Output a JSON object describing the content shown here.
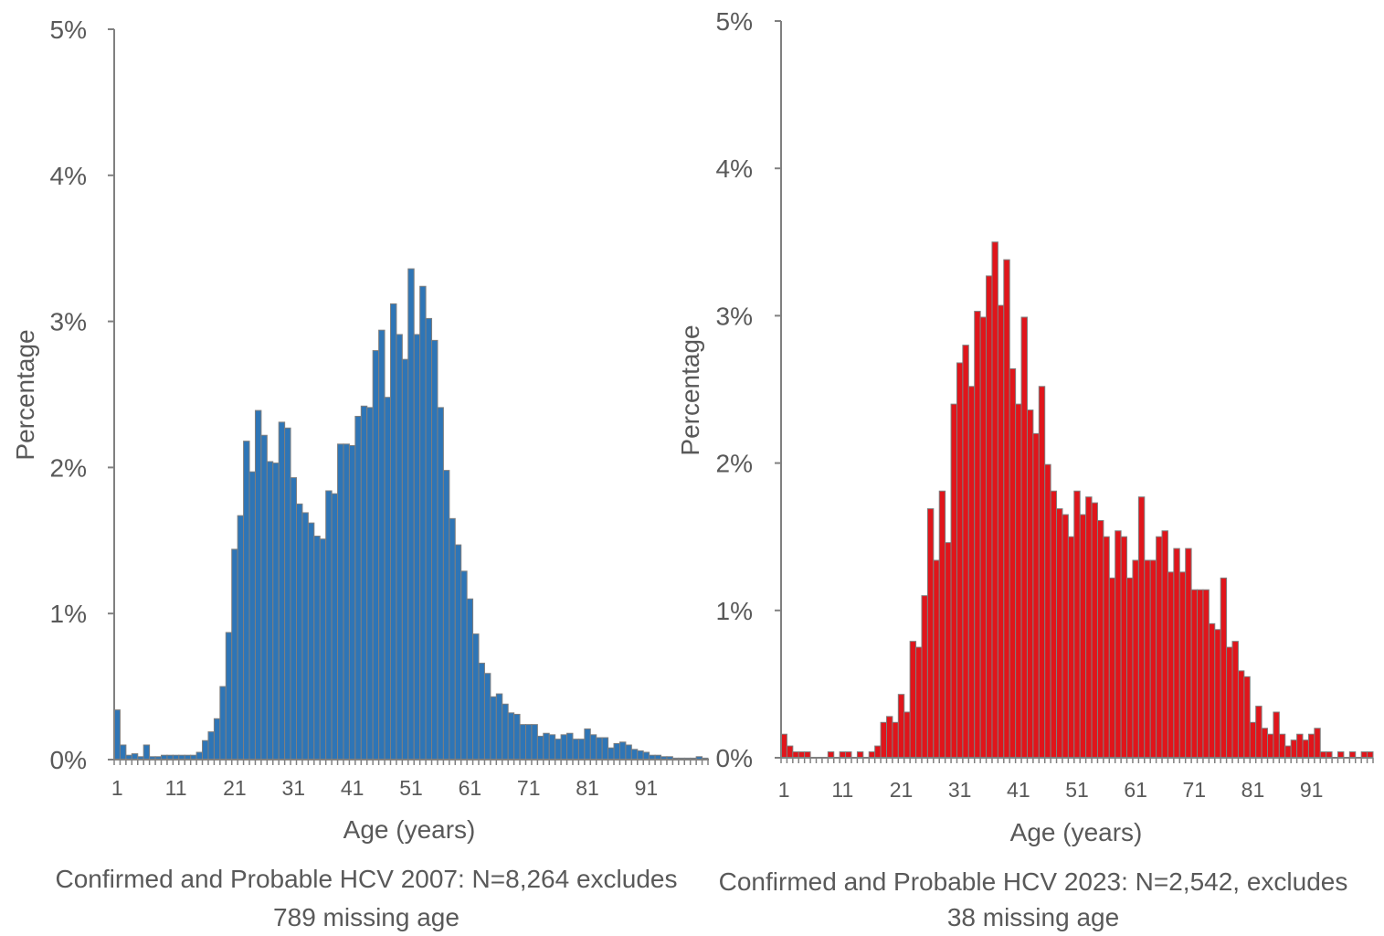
{
  "chart_data": [
    {
      "type": "bar",
      "ylabel": "Percentage",
      "xlabel": "Age (years)",
      "caption_line1": "Confirmed and Probable HCV 2007: N=8,264 excludes",
      "caption_line2": "789 missing age",
      "ylim": [
        0,
        5
      ],
      "yticks": [
        "0%",
        "1%",
        "2%",
        "3%",
        "4%",
        "5%"
      ],
      "xticks": [
        "1",
        "11",
        "21",
        "31",
        "41",
        "51",
        "61",
        "71",
        "81",
        "91"
      ],
      "x_start": 1,
      "bar_color": "#2e75b6",
      "values": [
        0.34,
        0.1,
        0.03,
        0.04,
        0.02,
        0.1,
        0.02,
        0.02,
        0.03,
        0.03,
        0.03,
        0.03,
        0.03,
        0.03,
        0.05,
        0.13,
        0.19,
        0.28,
        0.5,
        0.87,
        1.44,
        1.67,
        2.18,
        1.97,
        2.39,
        2.22,
        2.04,
        2.03,
        2.31,
        2.27,
        1.93,
        1.75,
        1.69,
        1.62,
        1.53,
        1.51,
        1.84,
        1.82,
        2.16,
        2.16,
        2.15,
        2.35,
        2.42,
        2.41,
        2.8,
        2.94,
        2.48,
        3.12,
        2.91,
        2.74,
        3.36,
        2.91,
        3.24,
        3.02,
        2.87,
        2.41,
        1.98,
        1.65,
        1.47,
        1.29,
        1.1,
        0.86,
        0.66,
        0.59,
        0.43,
        0.45,
        0.38,
        0.32,
        0.31,
        0.24,
        0.24,
        0.24,
        0.16,
        0.18,
        0.17,
        0.14,
        0.17,
        0.18,
        0.14,
        0.14,
        0.21,
        0.17,
        0.15,
        0.15,
        0.08,
        0.11,
        0.12,
        0.1,
        0.07,
        0.06,
        0.05,
        0.03,
        0.03,
        0.02,
        0.02,
        0.01,
        0.01,
        0.01,
        0.01,
        0.02,
        0.01
      ]
    },
    {
      "type": "bar",
      "ylabel": "Percentage",
      "xlabel": "Age (years)",
      "caption_line1": "Confirmed and Probable HCV 2023: N=2,542, excludes",
      "caption_line2": "38 missing age",
      "ylim": [
        0,
        5
      ],
      "yticks": [
        "0%",
        "1%",
        "2%",
        "3%",
        "4%",
        "5%"
      ],
      "xticks": [
        "1",
        "11",
        "21",
        "31",
        "41",
        "51",
        "61",
        "71",
        "81",
        "91"
      ],
      "x_start": 1,
      "bar_color": "#e0151b",
      "values": [
        0.16,
        0.08,
        0.04,
        0.04,
        0.04,
        0,
        0,
        0,
        0.04,
        0,
        0.04,
        0.04,
        0,
        0.04,
        0,
        0.04,
        0.08,
        0.24,
        0.28,
        0.24,
        0.43,
        0.31,
        0.79,
        0.75,
        1.1,
        1.69,
        1.34,
        1.81,
        1.46,
        2.4,
        2.68,
        2.8,
        2.52,
        3.03,
        2.99,
        3.27,
        3.5,
        3.07,
        3.38,
        2.64,
        2.4,
        2.99,
        2.36,
        2.2,
        2.52,
        1.99,
        1.81,
        1.69,
        1.65,
        1.5,
        1.81,
        1.65,
        1.77,
        1.73,
        1.61,
        1.5,
        1.22,
        1.54,
        1.5,
        1.22,
        1.34,
        1.77,
        1.34,
        1.34,
        1.5,
        1.54,
        1.26,
        1.42,
        1.26,
        1.42,
        1.14,
        1.14,
        1.14,
        0.91,
        0.87,
        1.22,
        0.75,
        0.79,
        0.59,
        0.55,
        0.24,
        0.35,
        0.2,
        0.16,
        0.31,
        0.16,
        0.08,
        0.12,
        0.16,
        0.12,
        0.16,
        0.2,
        0.04,
        0.04,
        0,
        0.04,
        0,
        0.04,
        0,
        0.04,
        0.04
      ]
    }
  ]
}
